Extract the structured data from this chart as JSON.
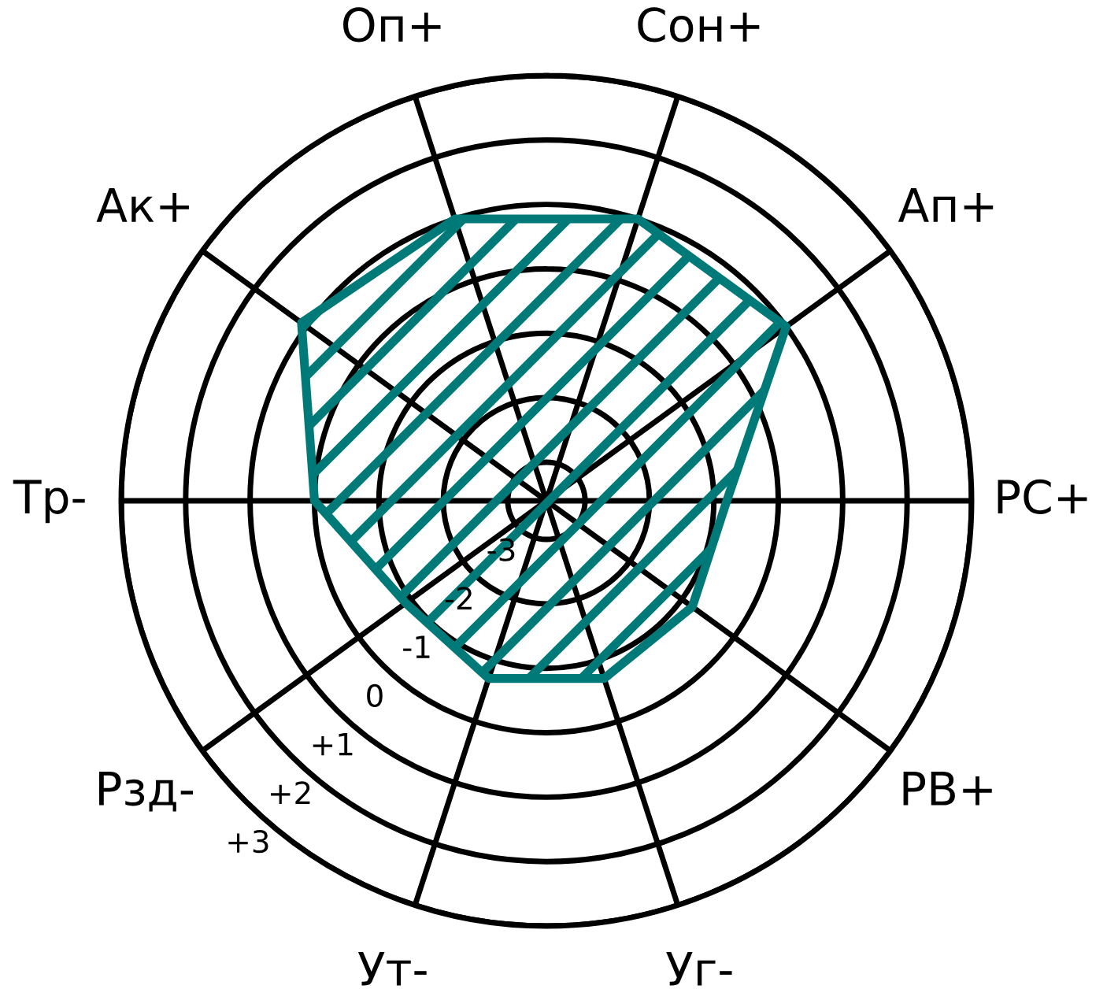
{
  "chart_data": {
    "type": "radar",
    "categories": [
      "Сон+",
      "Ап+",
      "РС+",
      "РВ+",
      "Уг-",
      "Ут-",
      "Рзд-",
      "Тр-",
      "Ак+",
      "Оп+"
    ],
    "series": [
      {
        "color": "#007a78",
        "values": [
          1,
          1,
          -0.8,
          -0.8,
          -0.7,
          -0.7,
          -0.9,
          0,
          1.1,
          1
        ]
      }
    ],
    "ylim": [
      -3.6,
      3
    ],
    "yticks": [
      {
        "value": -3,
        "label": "-3"
      },
      {
        "value": -2,
        "label": "-2"
      },
      {
        "value": -1,
        "label": "-1"
      },
      0,
      {
        "value": 1,
        "label": "+1"
      },
      {
        "value": 2,
        "label": "+2"
      },
      {
        "value": 3,
        "label": "+3"
      }
    ],
    "grid": true
  }
}
